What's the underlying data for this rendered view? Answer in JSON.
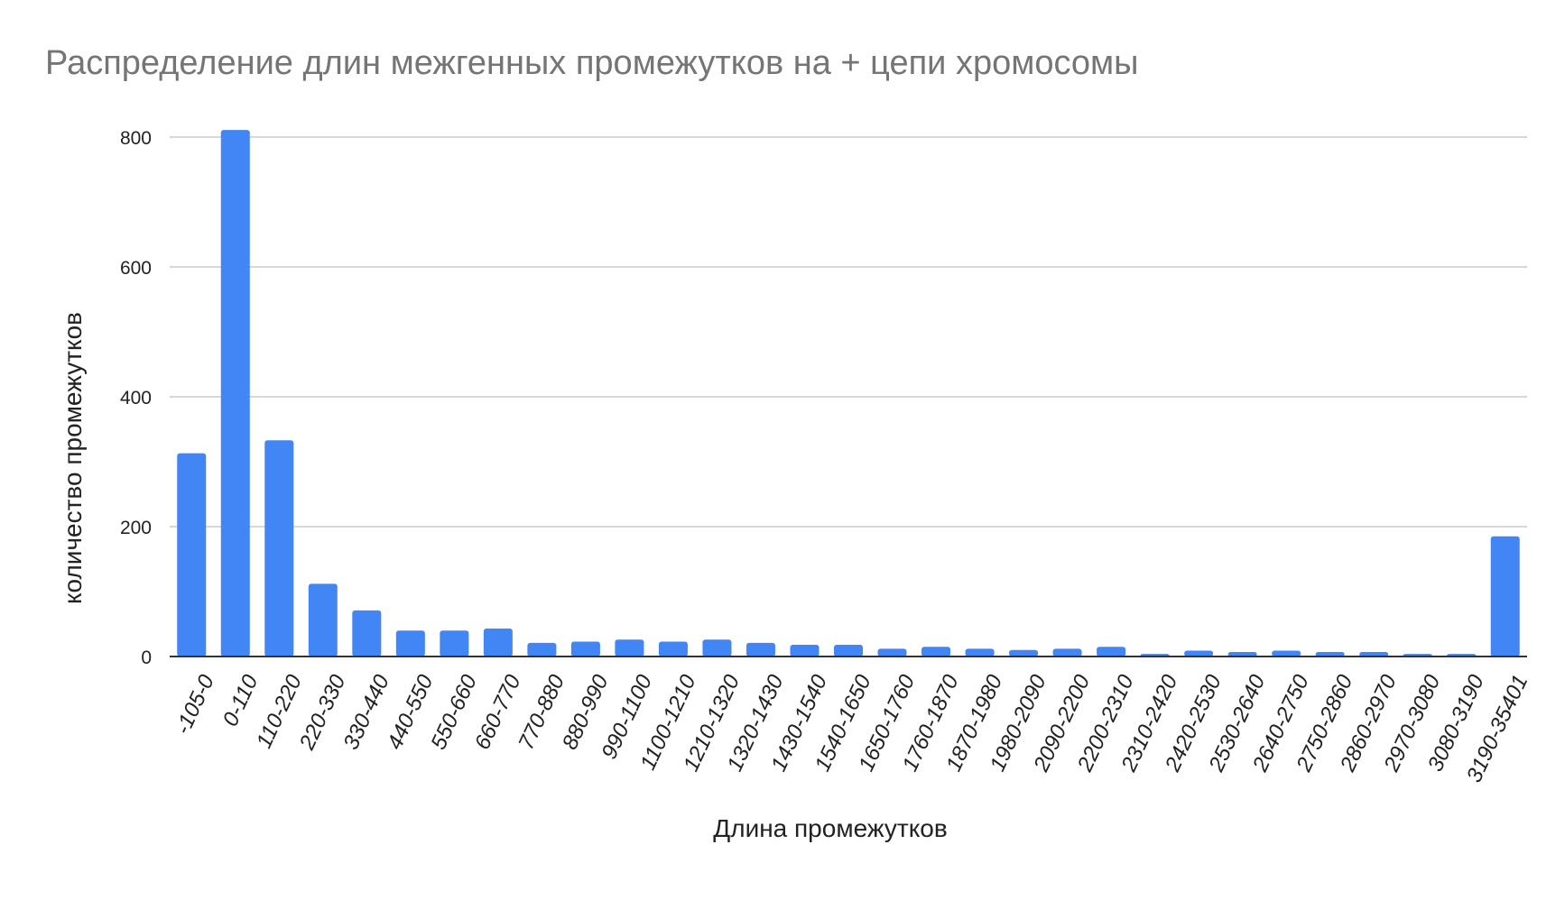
{
  "chart_data": {
    "type": "bar",
    "title": "Распределение длин межгенных промежутков на + цепи хромосомы",
    "xlabel": "Длина промежутков",
    "ylabel": "количество промежутков",
    "ylim": [
      0,
      800
    ],
    "yticks": [
      0,
      200,
      400,
      600,
      800
    ],
    "grid": true,
    "legend": "none",
    "color": "#4285F4",
    "categories": [
      "-105-0",
      "0-110",
      "110-220",
      "220-330",
      "330-440",
      "440-550",
      "550-660",
      "660-770",
      "770-880",
      "880-990",
      "990-1100",
      "1100-1210",
      "1210-1320",
      "1320-1430",
      "1430-1540",
      "1540-1650",
      "1650-1760",
      "1760-1870",
      "1870-1980",
      "1980-2090",
      "2090-2200",
      "2200-2310",
      "2310-2420",
      "2420-2530",
      "2530-2640",
      "2640-2750",
      "2750-2860",
      "2860-2970",
      "2970-3080",
      "3080-3190",
      "3190-35401"
    ],
    "values": [
      313,
      811,
      333,
      112,
      71,
      40,
      40,
      43,
      21,
      23,
      26,
      23,
      26,
      21,
      18,
      18,
      12,
      15,
      12,
      10,
      12,
      15,
      4,
      9,
      7,
      9,
      7,
      7,
      4,
      4,
      185
    ]
  }
}
